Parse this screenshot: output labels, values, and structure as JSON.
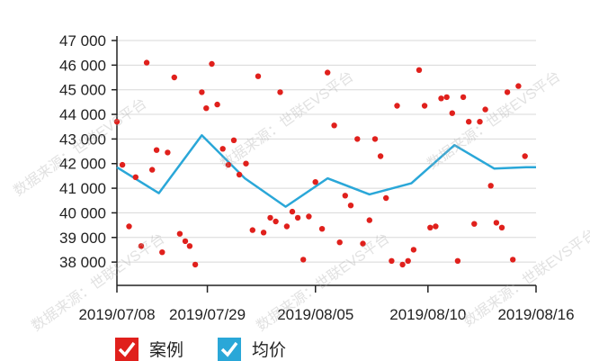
{
  "chart_data": {
    "type": "scatter",
    "y_ticks": [
      "47 000",
      "46 000",
      "45 000",
      "44 000",
      "43 000",
      "42 000",
      "41 000",
      "40 000",
      "39 000",
      "38 000"
    ],
    "y_tick_values": [
      47000,
      46000,
      45000,
      44000,
      43000,
      42000,
      41000,
      40000,
      39000,
      38000
    ],
    "x_tick_labels": [
      "2019/07/08",
      "2019/07/29",
      "2019/08/05",
      "2019/08/10",
      "2019/08/16"
    ],
    "ylim": [
      37200,
      47000
    ],
    "grid": true,
    "legend_position": "bottom-left",
    "series": [
      {
        "name": "案例",
        "color": "#e0201c",
        "points": [
          [
            0.0,
            43700
          ],
          [
            0.25,
            41950
          ],
          [
            0.55,
            39450
          ],
          [
            0.85,
            41450
          ],
          [
            1.1,
            38650
          ],
          [
            1.35,
            46100
          ],
          [
            1.6,
            41750
          ],
          [
            1.8,
            42550
          ],
          [
            2.05,
            38400
          ],
          [
            2.3,
            42450
          ],
          [
            2.6,
            45500
          ],
          [
            2.85,
            39150
          ],
          [
            3.1,
            38850
          ],
          [
            3.3,
            38650
          ],
          [
            3.55,
            37900
          ],
          [
            3.85,
            44900
          ],
          [
            4.05,
            44250
          ],
          [
            4.3,
            46050
          ],
          [
            4.55,
            44400
          ],
          [
            4.8,
            42600
          ],
          [
            5.05,
            41950
          ],
          [
            5.3,
            42950
          ],
          [
            5.55,
            41550
          ],
          [
            5.85,
            42000
          ],
          [
            6.15,
            39300
          ],
          [
            6.4,
            45550
          ],
          [
            6.65,
            39200
          ],
          [
            6.95,
            39800
          ],
          [
            7.2,
            39650
          ],
          [
            7.4,
            44900
          ],
          [
            7.7,
            39450
          ],
          [
            7.95,
            40050
          ],
          [
            8.2,
            39800
          ],
          [
            8.45,
            38100
          ],
          [
            8.7,
            39850
          ],
          [
            9.0,
            41250
          ],
          [
            9.3,
            39350
          ],
          [
            9.55,
            45700
          ],
          [
            9.85,
            43550
          ],
          [
            10.1,
            38800
          ],
          [
            10.35,
            40700
          ],
          [
            10.6,
            40300
          ],
          [
            10.9,
            43000
          ],
          [
            11.15,
            38750
          ],
          [
            11.45,
            39700
          ],
          [
            11.7,
            43000
          ],
          [
            11.95,
            42300
          ],
          [
            12.2,
            40600
          ],
          [
            12.45,
            38050
          ],
          [
            12.7,
            44350
          ],
          [
            12.95,
            37900
          ],
          [
            13.2,
            38050
          ],
          [
            13.45,
            38500
          ],
          [
            13.7,
            45800
          ],
          [
            13.95,
            44350
          ],
          [
            14.2,
            39400
          ],
          [
            14.45,
            39450
          ],
          [
            14.7,
            44650
          ],
          [
            14.95,
            44700
          ],
          [
            15.2,
            44050
          ],
          [
            15.45,
            38050
          ],
          [
            15.7,
            44700
          ],
          [
            15.95,
            43700
          ],
          [
            16.2,
            39550
          ],
          [
            16.45,
            43700
          ],
          [
            16.7,
            44200
          ],
          [
            16.95,
            41100
          ],
          [
            17.2,
            39600
          ],
          [
            17.45,
            39400
          ],
          [
            17.7,
            44900
          ],
          [
            17.95,
            38100
          ],
          [
            18.2,
            45150
          ],
          [
            18.5,
            42300
          ]
        ]
      },
      {
        "name": "均价",
        "color": "#2aa7d8",
        "points": [
          [
            0,
            41850
          ],
          [
            1.9,
            40800
          ],
          [
            3.85,
            43150
          ],
          [
            5.8,
            41400
          ],
          [
            7.65,
            40250
          ],
          [
            9.55,
            41400
          ],
          [
            11.45,
            40750
          ],
          [
            13.35,
            41200
          ],
          [
            15.3,
            42750
          ],
          [
            17.1,
            41800
          ],
          [
            18.55,
            41850
          ],
          [
            19.0,
            41850
          ]
        ]
      }
    ]
  },
  "watermark": "数据来源：世联EVS平台"
}
